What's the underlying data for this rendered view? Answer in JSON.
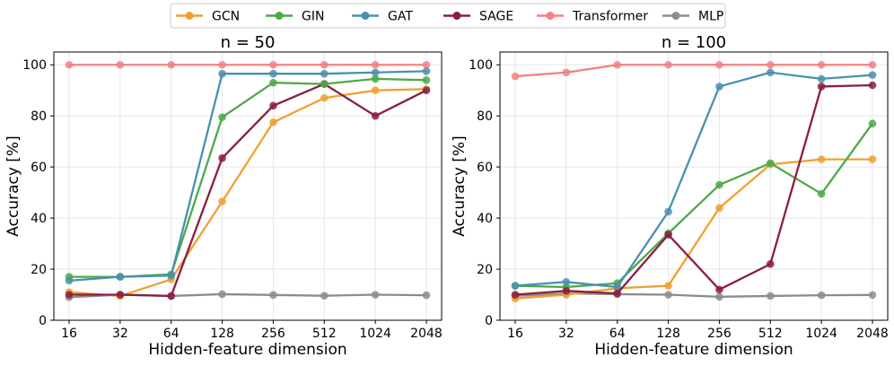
{
  "legend": {
    "entries": [
      {
        "name": "GCN",
        "color": "#f0a030"
      },
      {
        "name": "GIN",
        "color": "#4caa48"
      },
      {
        "name": "GAT",
        "color": "#4a90b0"
      },
      {
        "name": "SAGE",
        "color": "#8b1e3f"
      },
      {
        "name": "Transformer",
        "color": "#f58080"
      },
      {
        "name": "MLP",
        "color": "#8c8c8c"
      }
    ]
  },
  "chart_data": [
    {
      "type": "line",
      "title": "n = 50",
      "xlabel": "Hidden-feature dimension",
      "ylabel": "Accuracy [%]",
      "categories": [
        "16",
        "32",
        "64",
        "128",
        "256",
        "512",
        "1024",
        "2048"
      ],
      "ylim": [
        0,
        105
      ],
      "yticks": [
        0,
        20,
        40,
        60,
        80,
        100
      ],
      "grid": true,
      "series": [
        {
          "name": "Transformer",
          "color": "#f58080",
          "values": [
            100,
            100,
            100,
            100,
            100,
            100,
            100,
            100
          ]
        },
        {
          "name": "MLP",
          "color": "#8c8c8c",
          "values": [
            9,
            10,
            9.5,
            10.2,
            9.9,
            9.6,
            10,
            9.8
          ]
        },
        {
          "name": "GCN",
          "color": "#f0a030",
          "values": [
            11,
            9.5,
            16,
            46.5,
            77.5,
            87,
            90,
            90.5
          ]
        },
        {
          "name": "SAGE",
          "color": "#8b1e3f",
          "values": [
            10,
            10,
            9.5,
            63.5,
            84,
            92.5,
            80,
            90
          ]
        },
        {
          "name": "GIN",
          "color": "#4caa48",
          "values": [
            17,
            17,
            18,
            79.5,
            93,
            92.5,
            94.5,
            94
          ]
        },
        {
          "name": "GAT",
          "color": "#4a90b0",
          "values": [
            15.5,
            17,
            17.5,
            96.5,
            96.5,
            96.5,
            97,
            97.5
          ]
        }
      ]
    },
    {
      "type": "line",
      "title": "n = 100",
      "xlabel": "Hidden-feature dimension",
      "ylabel": "Accuracy [%]",
      "categories": [
        "16",
        "32",
        "64",
        "128",
        "256",
        "512",
        "1024",
        "2048"
      ],
      "ylim": [
        0,
        105
      ],
      "yticks": [
        0,
        20,
        40,
        60,
        80,
        100
      ],
      "grid": true,
      "series": [
        {
          "name": "Transformer",
          "color": "#f58080",
          "values": [
            95.5,
            97,
            100,
            100,
            100,
            100,
            100,
            100
          ]
        },
        {
          "name": "MLP",
          "color": "#8c8c8c",
          "values": [
            9.5,
            10.5,
            10.2,
            10,
            9.2,
            9.5,
            9.8,
            9.9
          ]
        },
        {
          "name": "GCN",
          "color": "#f0a030",
          "values": [
            8.5,
            10,
            12.5,
            13.5,
            44,
            61,
            63,
            63
          ]
        },
        {
          "name": "GIN",
          "color": "#4caa48",
          "values": [
            13.5,
            13,
            14.5,
            34,
            53,
            61.5,
            49.5,
            77
          ]
        },
        {
          "name": "GAT",
          "color": "#4a90b0",
          "values": [
            13.5,
            15,
            13,
            42.5,
            91.5,
            97,
            94.5,
            96
          ]
        },
        {
          "name": "SAGE",
          "color": "#8b1e3f",
          "values": [
            10,
            11.5,
            10.5,
            33.5,
            12,
            22,
            91.5,
            92
          ]
        }
      ]
    }
  ]
}
